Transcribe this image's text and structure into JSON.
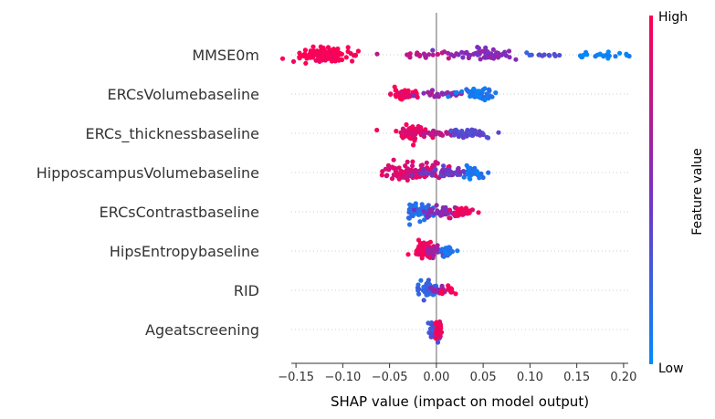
{
  "chart_data": {
    "type": "scatter",
    "subtype": "shap-beeswarm",
    "xlabel": "SHAP value (impact on model output)",
    "xlim": [
      -0.155,
      0.205
    ],
    "xticks": [
      -0.15,
      -0.1,
      -0.05,
      0.0,
      0.05,
      0.1,
      0.15,
      0.2
    ],
    "xtick_labels": [
      "−0.15",
      "−0.10",
      "−0.05",
      "0.00",
      "0.05",
      "0.10",
      "0.15",
      "0.20"
    ],
    "colorbar": {
      "label": "Feature value",
      "high": "High",
      "low": "Low",
      "high_color": "#ff0052",
      "mid_color": "#7b2fbf",
      "low_color": "#008bfb"
    },
    "features": [
      {
        "name": "MMSE0m",
        "clusters": [
          {
            "center": -0.12,
            "spread": 0.028,
            "n": 160,
            "value": 1.0,
            "width": 8
          },
          {
            "center": -0.01,
            "spread": 0.05,
            "n": 20,
            "value": 0.72,
            "width": 3
          },
          {
            "center": 0.05,
            "spread": 0.035,
            "n": 60,
            "value": 0.55,
            "width": 7
          },
          {
            "center": 0.105,
            "spread": 0.025,
            "n": 12,
            "value": 0.3,
            "width": 3
          },
          {
            "center": 0.175,
            "spread": 0.035,
            "n": 22,
            "value": 0.05,
            "width": 5
          }
        ]
      },
      {
        "name": "ERCsVolumebaseline",
        "clusters": [
          {
            "center": -0.035,
            "spread": 0.02,
            "n": 50,
            "value": 0.95,
            "width": 6
          },
          {
            "center": 0.005,
            "spread": 0.035,
            "n": 30,
            "value": 0.6,
            "width": 3
          },
          {
            "center": 0.045,
            "spread": 0.025,
            "n": 50,
            "value": 0.1,
            "width": 6
          }
        ]
      },
      {
        "name": "ERCs_thicknessbaseline",
        "clusters": [
          {
            "center": -0.027,
            "spread": 0.02,
            "n": 70,
            "value": 0.9,
            "width": 9
          },
          {
            "center": 0.0,
            "spread": 0.03,
            "n": 20,
            "value": 0.7,
            "width": 3
          },
          {
            "center": 0.035,
            "spread": 0.025,
            "n": 45,
            "value": 0.35,
            "width": 6
          }
        ]
      },
      {
        "name": "HipposcampusVolumebaseline",
        "clusters": [
          {
            "center": -0.025,
            "spread": 0.04,
            "n": 110,
            "value": 0.85,
            "width": 9
          },
          {
            "center": 0.01,
            "spread": 0.035,
            "n": 45,
            "value": 0.45,
            "width": 5
          },
          {
            "center": 0.04,
            "spread": 0.015,
            "n": 30,
            "value": 0.1,
            "width": 7
          }
        ]
      },
      {
        "name": "ERCsContrastbaseline",
        "clusters": [
          {
            "center": -0.018,
            "spread": 0.015,
            "n": 60,
            "value": 0.15,
            "width": 9
          },
          {
            "center": 0.005,
            "spread": 0.02,
            "n": 45,
            "value": 0.55,
            "width": 6
          },
          {
            "center": 0.028,
            "spread": 0.015,
            "n": 35,
            "value": 0.95,
            "width": 6
          }
        ]
      },
      {
        "name": "HipsEntropybaseline",
        "clusters": [
          {
            "center": -0.012,
            "spread": 0.012,
            "n": 60,
            "value": 0.95,
            "width": 9
          },
          {
            "center": 0.0,
            "spread": 0.014,
            "n": 30,
            "value": 0.6,
            "width": 6
          },
          {
            "center": 0.013,
            "spread": 0.01,
            "n": 25,
            "value": 0.15,
            "width": 6
          }
        ]
      },
      {
        "name": "RID",
        "clusters": [
          {
            "center": -0.008,
            "spread": 0.01,
            "n": 45,
            "value": 0.2,
            "width": 10
          },
          {
            "center": 0.005,
            "spread": 0.012,
            "n": 20,
            "value": 0.6,
            "width": 4
          },
          {
            "center": 0.014,
            "spread": 0.008,
            "n": 15,
            "value": 1.0,
            "width": 5
          }
        ]
      },
      {
        "name": "Ageatscreening",
        "clusters": [
          {
            "center": -0.002,
            "spread": 0.006,
            "n": 45,
            "value": 0.3,
            "width": 11
          },
          {
            "center": 0.002,
            "spread": 0.004,
            "n": 30,
            "value": 0.95,
            "width": 11
          }
        ]
      }
    ]
  }
}
